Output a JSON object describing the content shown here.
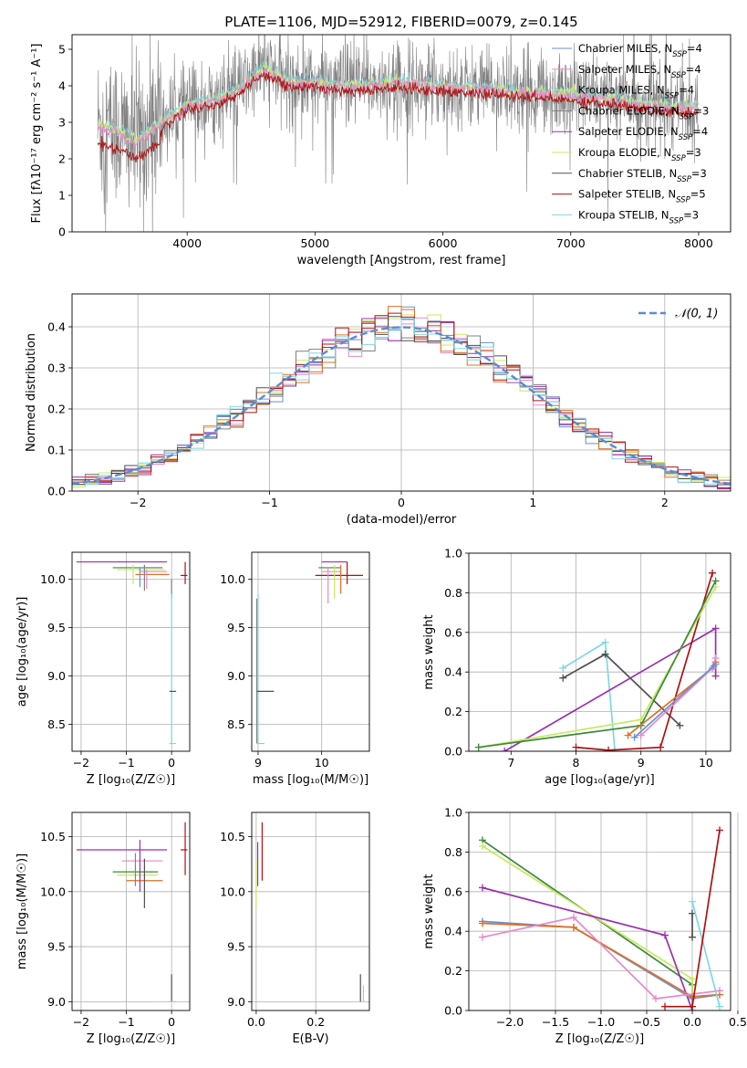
{
  "figure": {
    "title": "PLATE=1106, MJD=52912, FIBERID=0079, z=0.145",
    "colors": {
      "chabrier_miles": "#6a8fd6",
      "salpeter_miles": "#e888c8",
      "kroupa_miles": "#d0e87a",
      "chabrier_elodie": "#808080",
      "salpeter_elodie": "#9b2fb0",
      "kroupa_elodie": "#c8e860",
      "chabrier_stelib": "#505050",
      "salpeter_stelib": "#b01010",
      "kroupa_stelib": "#80d8e0",
      "orange": "#e07020",
      "green": "#3a8a3a"
    }
  },
  "chart_data": [
    {
      "id": "spectrum",
      "type": "line",
      "title": "PLATE=1106, MJD=52912, FIBERID=0079, z=0.145",
      "xlabel": "wavelength [Angstrom, rest frame]",
      "ylabel": "Flux [fλ10⁻¹⁷ erg cm⁻² s⁻¹ A⁻¹]",
      "xlim": [
        3100,
        8250
      ],
      "ylim": [
        0,
        5.4
      ],
      "xticks": [
        "4000",
        "5000",
        "6000",
        "7000",
        "8000"
      ],
      "yticks": [
        "0",
        "1",
        "2",
        "3",
        "4",
        "5"
      ],
      "legend_placement": "top-right",
      "legend": [
        {
          "label": "Chabrier MILES, N",
          "sub": "SSP",
          "post": "=4",
          "color": "#6a8fd6"
        },
        {
          "label": "Salpeter MILES, N",
          "sub": "SSP",
          "post": "=4",
          "color": "#e888c8"
        },
        {
          "label": "Kroupa MILES, N",
          "sub": "SSP",
          "post": "=4",
          "color": "#d0e87a"
        },
        {
          "label": "Chabrier ELODIE, N",
          "sub": "SSP",
          "post": "=3",
          "color": "#808080"
        },
        {
          "label": "Salpeter ELODIE, N",
          "sub": "SSP",
          "post": "=4",
          "color": "#9b2fb0"
        },
        {
          "label": "Kroupa ELODIE, N",
          "sub": "SSP",
          "post": "=3",
          "color": "#c8e860"
        },
        {
          "label": "Chabrier STELIB, N",
          "sub": "SSP",
          "post": "=3",
          "color": "#505050"
        },
        {
          "label": "Salpeter STELIB, N",
          "sub": "SSP",
          "post": "=5",
          "color": "#b01010"
        },
        {
          "label": "Kroupa STELIB, N",
          "sub": "SSP",
          "post": "=3",
          "color": "#80d8e0"
        }
      ],
      "continuum": [
        {
          "x": 3300,
          "y": 2.9
        },
        {
          "x": 3450,
          "y": 2.8
        },
        {
          "x": 3600,
          "y": 2.5
        },
        {
          "x": 3800,
          "y": 3.0
        },
        {
          "x": 4000,
          "y": 3.5
        },
        {
          "x": 4200,
          "y": 3.6
        },
        {
          "x": 4400,
          "y": 3.9
        },
        {
          "x": 4600,
          "y": 4.5
        },
        {
          "x": 4800,
          "y": 4.1
        },
        {
          "x": 5000,
          "y": 4.1
        },
        {
          "x": 5300,
          "y": 4.0
        },
        {
          "x": 5600,
          "y": 4.1
        },
        {
          "x": 6000,
          "y": 4.0
        },
        {
          "x": 6400,
          "y": 3.9
        },
        {
          "x": 6800,
          "y": 3.8
        },
        {
          "x": 7200,
          "y": 3.7
        },
        {
          "x": 7600,
          "y": 3.5
        },
        {
          "x": 8000,
          "y": 3.4
        }
      ]
    },
    {
      "id": "residuals",
      "type": "histogram",
      "xlabel": "(data-model)/error",
      "ylabel": "Normed distribution",
      "xlim": [
        -2.5,
        2.5
      ],
      "ylim": [
        0,
        0.48
      ],
      "xticks": [
        "−2",
        "−1",
        "0",
        "1",
        "2"
      ],
      "yticks": [
        "0.0",
        "0.1",
        "0.2",
        "0.3",
        "0.4"
      ],
      "legend": "𝒩(0, 1)",
      "legend_placement": "top-right",
      "bin_width": 0.1,
      "reference": "normal(0,1)"
    },
    {
      "id": "age_vs_Z",
      "type": "scatter",
      "xlabel": "Z [log₁₀(Z/Z☉)]",
      "ylabel": "age  [log₁₀(age/yr)]",
      "xlim": [
        -2.2,
        0.4
      ],
      "ylim": [
        8.22,
        10.28
      ],
      "xticks": [
        "−2",
        "−1",
        "0"
      ],
      "yticks": [
        "8.5",
        "9.0",
        "9.5",
        "10.0"
      ]
    },
    {
      "id": "age_vs_mass",
      "type": "scatter",
      "xlabel": "mass [log₁₀(M/M☉)]",
      "ylabel": "",
      "xlim": [
        8.9,
        10.75
      ],
      "ylim": [
        8.22,
        10.28
      ],
      "xticks": [
        "9",
        "10"
      ],
      "yticks": [
        "8.5",
        "9.0",
        "9.5",
        "10.0"
      ]
    },
    {
      "id": "massweight_vs_age",
      "type": "line",
      "xlabel": "age  [log₁₀(age/yr)]",
      "ylabel": "mass weight",
      "xlim": [
        6.35,
        10.38
      ],
      "ylim": [
        0,
        1.0
      ],
      "xticks": [
        "7",
        "8",
        "9",
        "10"
      ],
      "yticks": [
        "0.0",
        "0.2",
        "0.4",
        "0.6",
        "0.8",
        "1.0"
      ],
      "series": [
        {
          "color": "#80d8e0",
          "x": [
            7.8,
            8.45,
            8.6
          ],
          "y": [
            0.42,
            0.55,
            0.0
          ]
        },
        {
          "color": "#505050",
          "x": [
            7.8,
            8.45,
            9.6
          ],
          "y": [
            0.37,
            0.49,
            0.13
          ]
        },
        {
          "color": "#9b2fb0",
          "x": [
            6.9,
            10.15,
            10.15
          ],
          "y": [
            0.0,
            0.62,
            0.38
          ]
        },
        {
          "color": "#b01010",
          "x": [
            8.0,
            8.5,
            9.3,
            10.1
          ],
          "y": [
            0.02,
            0.005,
            0.02,
            0.9
          ]
        },
        {
          "color": "#c8e860",
          "x": [
            6.5,
            9.0,
            10.15
          ],
          "y": [
            0.02,
            0.16,
            0.83
          ]
        },
        {
          "color": "#3a8a3a",
          "x": [
            6.5,
            9.0,
            10.15
          ],
          "y": [
            0.02,
            0.13,
            0.86
          ]
        },
        {
          "color": "#e07020",
          "x": [
            8.8,
            10.1,
            10.15
          ],
          "y": [
            0.08,
            0.42,
            0.45
          ]
        },
        {
          "color": "#e888c8",
          "x": [
            9.0,
            10.1,
            10.15
          ],
          "y": [
            0.08,
            0.42,
            0.47
          ]
        },
        {
          "color": "#6a8fd6",
          "x": [
            8.9,
            10.12,
            10.15
          ],
          "y": [
            0.07,
            0.43,
            0.44
          ]
        }
      ]
    },
    {
      "id": "mass_vs_Z",
      "type": "scatter",
      "xlabel": "Z [log₁₀(Z/Z☉)]",
      "ylabel": "mass [log₁₀(M/M☉)]",
      "xlim": [
        -2.2,
        0.4
      ],
      "ylim": [
        8.92,
        10.72
      ],
      "xticks": [
        "−2",
        "−1",
        "0"
      ],
      "yticks": [
        "9.0",
        "9.5",
        "10.0",
        "10.5"
      ]
    },
    {
      "id": "mass_vs_ebv",
      "type": "scatter",
      "xlabel": "E(B-V)",
      "ylabel": "",
      "xlim": [
        -0.015,
        0.38
      ],
      "ylim": [
        8.92,
        10.72
      ],
      "xticks": [
        "0.0",
        "0.2"
      ],
      "yticks": [
        "9.0",
        "9.5",
        "10.0",
        "10.5"
      ]
    },
    {
      "id": "massweight_vs_Z",
      "type": "line",
      "xlabel": "Z [log₁₀(Z/Z☉)]",
      "ylabel": "mass weight",
      "xlim": [
        -2.45,
        0.42
      ],
      "ylim": [
        0,
        1.0
      ],
      "xticks": [
        "−2.0",
        "−1.5",
        "−1.0",
        "−0.5",
        "0.0",
        "0.5"
      ],
      "yticks": [
        "0.0",
        "0.2",
        "0.4",
        "0.6",
        "0.8",
        "1.0"
      ],
      "series": [
        {
          "color": "#3a8a3a",
          "x": [
            -2.3,
            0.0,
            0.0
          ],
          "y": [
            0.86,
            0.13,
            0.02
          ]
        },
        {
          "color": "#c8e860",
          "x": [
            -2.3,
            0.0,
            0.0
          ],
          "y": [
            0.83,
            0.16,
            0.02
          ]
        },
        {
          "color": "#9b2fb0",
          "x": [
            -2.3,
            -0.3,
            0.0
          ],
          "y": [
            0.62,
            0.38,
            0.0
          ]
        },
        {
          "color": "#6a8fd6",
          "x": [
            -2.3,
            -1.3,
            0.0,
            0.3
          ],
          "y": [
            0.45,
            0.42,
            0.06,
            0.08
          ]
        },
        {
          "color": "#e07020",
          "x": [
            -2.3,
            -1.3,
            0.0,
            0.3
          ],
          "y": [
            0.44,
            0.42,
            0.07,
            0.08
          ]
        },
        {
          "color": "#e888c8",
          "x": [
            -2.3,
            -1.3,
            -0.4,
            0.3
          ],
          "y": [
            0.37,
            0.47,
            0.06,
            0.1
          ]
        },
        {
          "color": "#505050",
          "x": [
            0.0,
            0.0
          ],
          "y": [
            0.49,
            0.37
          ]
        },
        {
          "color": "#80d8e0",
          "x": [
            0.0,
            0.3
          ],
          "y": [
            0.55,
            0.02
          ]
        },
        {
          "color": "#b01010",
          "x": [
            -0.3,
            0.0,
            0.3
          ],
          "y": [
            0.02,
            0.02,
            0.91
          ]
        }
      ]
    }
  ]
}
